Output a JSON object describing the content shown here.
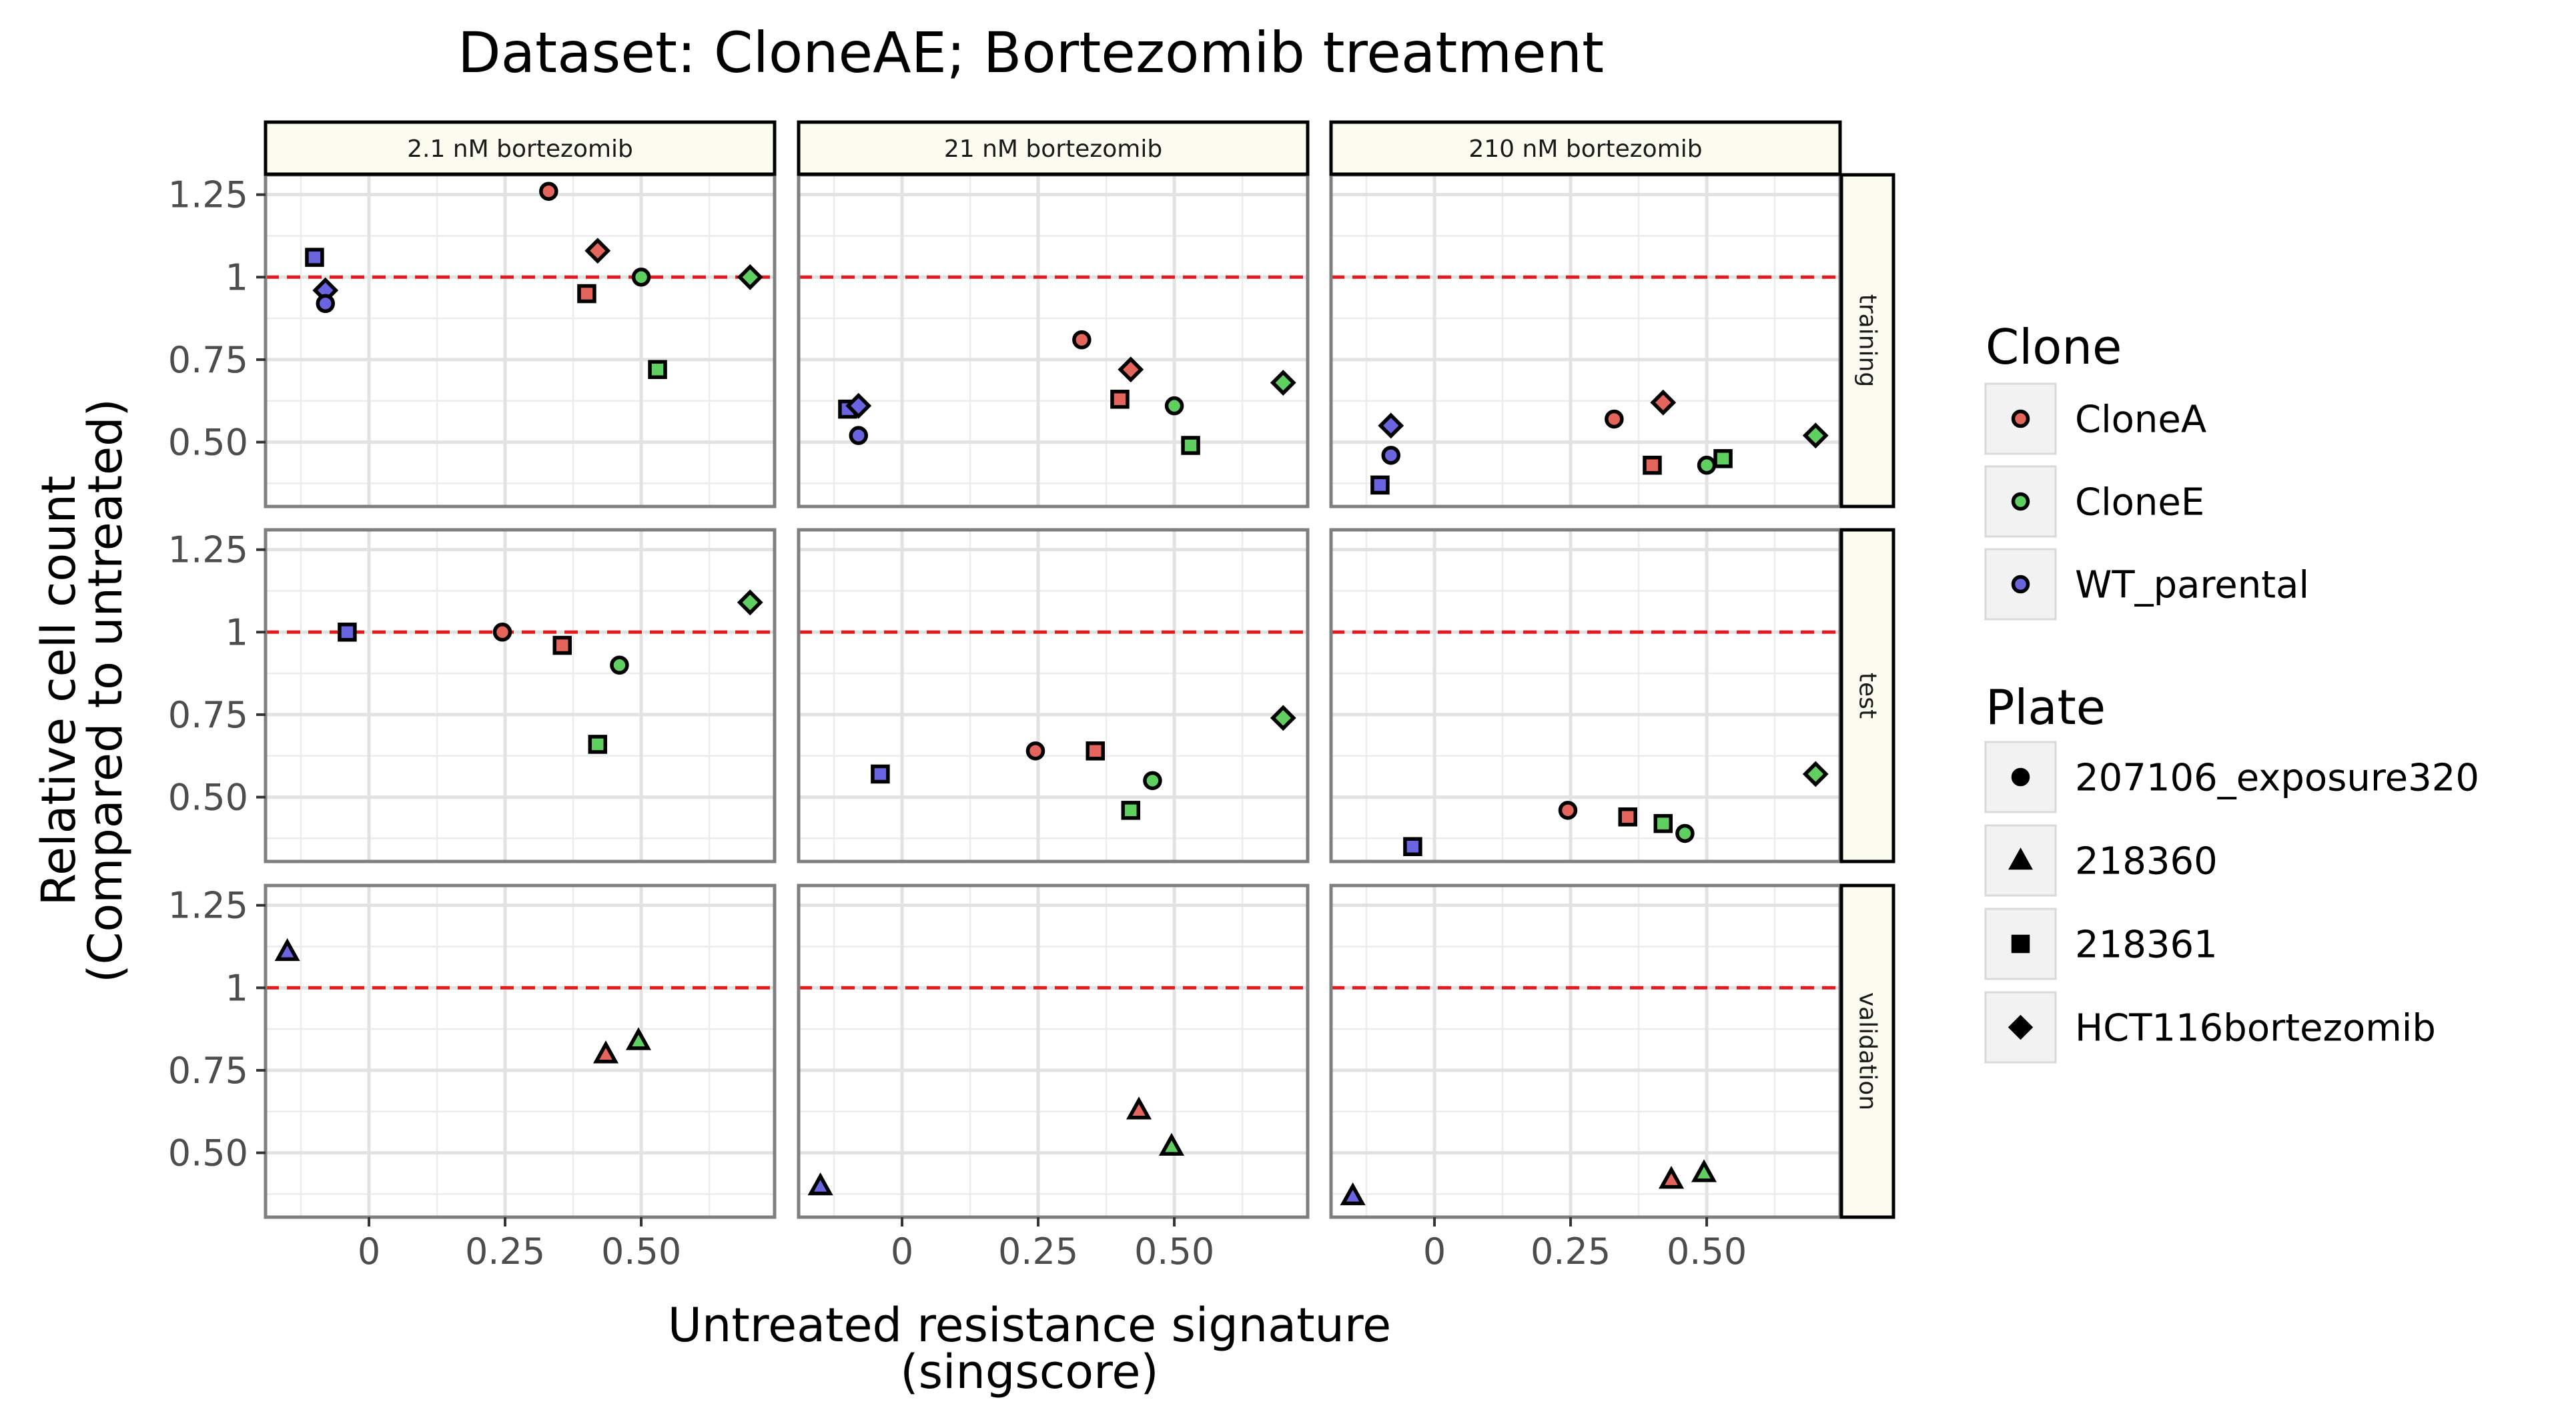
{
  "chart_data": {
    "type": "scatter",
    "title": "Dataset: CloneAE; Bortezomib treatment",
    "xlabel": [
      "Untreated resistance signature",
      "(singscore)"
    ],
    "ylabel": [
      "Relative cell count",
      "(Compared to untreated)"
    ],
    "xlim": [
      -0.19,
      0.745
    ],
    "ylim": [
      0.305,
      1.31
    ],
    "xticks": [
      {
        "v": 0,
        "label": "0"
      },
      {
        "v": 0.25,
        "label": "0.25"
      },
      {
        "v": 0.5,
        "label": "0.50"
      }
    ],
    "yticks": [
      {
        "v": 0.5,
        "label": "0.50"
      },
      {
        "v": 0.75,
        "label": "0.75"
      },
      {
        "v": 1,
        "label": "1"
      },
      {
        "v": 1.25,
        "label": "1.25"
      }
    ],
    "reference_line": {
      "y": 1,
      "style": "dashed",
      "color": "#e41a1c"
    },
    "grid": true,
    "columns": [
      "2.1 nM bortezomib",
      "21 nM bortezomib",
      "210 nM bortezomib"
    ],
    "rows": [
      "training",
      "test",
      "validation"
    ],
    "legend": {
      "placement": "right",
      "clone": {
        "title": "Clone",
        "items": [
          {
            "key": "CloneA",
            "label": "CloneA",
            "color": "#e5645b"
          },
          {
            "key": "CloneE",
            "label": "CloneE",
            "color": "#5fcf5f"
          },
          {
            "key": "WT_parental",
            "label": "WT_parental",
            "color": "#6a64e0"
          }
        ]
      },
      "plate": {
        "title": "Plate",
        "items": [
          {
            "key": "207106_exposure320",
            "label": "207106_exposure320",
            "shape": "circle"
          },
          {
            "key": "218360",
            "label": "218360",
            "shape": "triangle"
          },
          {
            "key": "218361",
            "label": "218361",
            "shape": "square"
          },
          {
            "key": "HCT116bortezomib",
            "label": "HCT116bortezomib",
            "shape": "diamond"
          }
        ]
      }
    },
    "points": [
      {
        "row": 0,
        "col": 0,
        "x": -0.1,
        "y": 1.06,
        "clone": "WT_parental",
        "plate": "218361"
      },
      {
        "row": 0,
        "col": 0,
        "x": -0.08,
        "y": 0.96,
        "clone": "WT_parental",
        "plate": "HCT116bortezomib"
      },
      {
        "row": 0,
        "col": 0,
        "x": -0.08,
        "y": 0.92,
        "clone": "WT_parental",
        "plate": "207106_exposure320"
      },
      {
        "row": 0,
        "col": 0,
        "x": 0.33,
        "y": 1.26,
        "clone": "CloneA",
        "plate": "207106_exposure320"
      },
      {
        "row": 0,
        "col": 0,
        "x": 0.42,
        "y": 1.08,
        "clone": "CloneA",
        "plate": "HCT116bortezomib"
      },
      {
        "row": 0,
        "col": 0,
        "x": 0.4,
        "y": 0.95,
        "clone": "CloneA",
        "plate": "218361"
      },
      {
        "row": 0,
        "col": 0,
        "x": 0.5,
        "y": 1.0,
        "clone": "CloneE",
        "plate": "207106_exposure320"
      },
      {
        "row": 0,
        "col": 0,
        "x": 0.7,
        "y": 1.0,
        "clone": "CloneE",
        "plate": "HCT116bortezomib"
      },
      {
        "row": 0,
        "col": 0,
        "x": 0.53,
        "y": 0.72,
        "clone": "CloneE",
        "plate": "218361"
      },
      {
        "row": 0,
        "col": 1,
        "x": -0.1,
        "y": 0.6,
        "clone": "WT_parental",
        "plate": "218361"
      },
      {
        "row": 0,
        "col": 1,
        "x": -0.08,
        "y": 0.61,
        "clone": "WT_parental",
        "plate": "HCT116bortezomib"
      },
      {
        "row": 0,
        "col": 1,
        "x": -0.08,
        "y": 0.52,
        "clone": "WT_parental",
        "plate": "207106_exposure320"
      },
      {
        "row": 0,
        "col": 1,
        "x": 0.33,
        "y": 0.81,
        "clone": "CloneA",
        "plate": "207106_exposure320"
      },
      {
        "row": 0,
        "col": 1,
        "x": 0.42,
        "y": 0.72,
        "clone": "CloneA",
        "plate": "HCT116bortezomib"
      },
      {
        "row": 0,
        "col": 1,
        "x": 0.4,
        "y": 0.63,
        "clone": "CloneA",
        "plate": "218361"
      },
      {
        "row": 0,
        "col": 1,
        "x": 0.5,
        "y": 0.61,
        "clone": "CloneE",
        "plate": "207106_exposure320"
      },
      {
        "row": 0,
        "col": 1,
        "x": 0.7,
        "y": 0.68,
        "clone": "CloneE",
        "plate": "HCT116bortezomib"
      },
      {
        "row": 0,
        "col": 1,
        "x": 0.53,
        "y": 0.49,
        "clone": "CloneE",
        "plate": "218361"
      },
      {
        "row": 0,
        "col": 2,
        "x": -0.1,
        "y": 0.37,
        "clone": "WT_parental",
        "plate": "218361"
      },
      {
        "row": 0,
        "col": 2,
        "x": -0.08,
        "y": 0.55,
        "clone": "WT_parental",
        "plate": "HCT116bortezomib"
      },
      {
        "row": 0,
        "col": 2,
        "x": -0.08,
        "y": 0.46,
        "clone": "WT_parental",
        "plate": "207106_exposure320"
      },
      {
        "row": 0,
        "col": 2,
        "x": 0.33,
        "y": 0.57,
        "clone": "CloneA",
        "plate": "207106_exposure320"
      },
      {
        "row": 0,
        "col": 2,
        "x": 0.42,
        "y": 0.62,
        "clone": "CloneA",
        "plate": "HCT116bortezomib"
      },
      {
        "row": 0,
        "col": 2,
        "x": 0.4,
        "y": 0.43,
        "clone": "CloneA",
        "plate": "218361"
      },
      {
        "row": 0,
        "col": 2,
        "x": 0.5,
        "y": 0.43,
        "clone": "CloneE",
        "plate": "207106_exposure320"
      },
      {
        "row": 0,
        "col": 2,
        "x": 0.7,
        "y": 0.52,
        "clone": "CloneE",
        "plate": "HCT116bortezomib"
      },
      {
        "row": 0,
        "col": 2,
        "x": 0.53,
        "y": 0.45,
        "clone": "CloneE",
        "plate": "218361"
      },
      {
        "row": 1,
        "col": 0,
        "x": -0.04,
        "y": 1.0,
        "clone": "WT_parental",
        "plate": "218361"
      },
      {
        "row": 1,
        "col": 0,
        "x": 0.245,
        "y": 1.0,
        "clone": "CloneA",
        "plate": "207106_exposure320"
      },
      {
        "row": 1,
        "col": 0,
        "x": 0.355,
        "y": 0.96,
        "clone": "CloneA",
        "plate": "218361"
      },
      {
        "row": 1,
        "col": 0,
        "x": 0.46,
        "y": 0.9,
        "clone": "CloneE",
        "plate": "207106_exposure320"
      },
      {
        "row": 1,
        "col": 0,
        "x": 0.42,
        "y": 0.66,
        "clone": "CloneE",
        "plate": "218361"
      },
      {
        "row": 1,
        "col": 0,
        "x": 0.7,
        "y": 1.09,
        "clone": "CloneE",
        "plate": "HCT116bortezomib"
      },
      {
        "row": 1,
        "col": 1,
        "x": -0.04,
        "y": 0.57,
        "clone": "WT_parental",
        "plate": "218361"
      },
      {
        "row": 1,
        "col": 1,
        "x": 0.245,
        "y": 0.64,
        "clone": "CloneA",
        "plate": "207106_exposure320"
      },
      {
        "row": 1,
        "col": 1,
        "x": 0.355,
        "y": 0.64,
        "clone": "CloneA",
        "plate": "218361"
      },
      {
        "row": 1,
        "col": 1,
        "x": 0.46,
        "y": 0.55,
        "clone": "CloneE",
        "plate": "207106_exposure320"
      },
      {
        "row": 1,
        "col": 1,
        "x": 0.42,
        "y": 0.46,
        "clone": "CloneE",
        "plate": "218361"
      },
      {
        "row": 1,
        "col": 1,
        "x": 0.7,
        "y": 0.74,
        "clone": "CloneE",
        "plate": "HCT116bortezomib"
      },
      {
        "row": 1,
        "col": 2,
        "x": -0.04,
        "y": 0.35,
        "clone": "WT_parental",
        "plate": "218361"
      },
      {
        "row": 1,
        "col": 2,
        "x": 0.245,
        "y": 0.46,
        "clone": "CloneA",
        "plate": "207106_exposure320"
      },
      {
        "row": 1,
        "col": 2,
        "x": 0.355,
        "y": 0.44,
        "clone": "CloneA",
        "plate": "218361"
      },
      {
        "row": 1,
        "col": 2,
        "x": 0.46,
        "y": 0.39,
        "clone": "CloneE",
        "plate": "207106_exposure320"
      },
      {
        "row": 1,
        "col": 2,
        "x": 0.42,
        "y": 0.42,
        "clone": "CloneE",
        "plate": "218361"
      },
      {
        "row": 1,
        "col": 2,
        "x": 0.7,
        "y": 0.57,
        "clone": "CloneE",
        "plate": "HCT116bortezomib"
      },
      {
        "row": 2,
        "col": 0,
        "x": -0.15,
        "y": 1.11,
        "clone": "WT_parental",
        "plate": "218360"
      },
      {
        "row": 2,
        "col": 0,
        "x": 0.435,
        "y": 0.8,
        "clone": "CloneA",
        "plate": "218360"
      },
      {
        "row": 2,
        "col": 0,
        "x": 0.495,
        "y": 0.84,
        "clone": "CloneE",
        "plate": "218360"
      },
      {
        "row": 2,
        "col": 1,
        "x": -0.15,
        "y": 0.4,
        "clone": "WT_parental",
        "plate": "218360"
      },
      {
        "row": 2,
        "col": 1,
        "x": 0.435,
        "y": 0.63,
        "clone": "CloneA",
        "plate": "218360"
      },
      {
        "row": 2,
        "col": 1,
        "x": 0.495,
        "y": 0.52,
        "clone": "CloneE",
        "plate": "218360"
      },
      {
        "row": 2,
        "col": 2,
        "x": -0.15,
        "y": 0.37,
        "clone": "WT_parental",
        "plate": "218360"
      },
      {
        "row": 2,
        "col": 2,
        "x": 0.435,
        "y": 0.42,
        "clone": "CloneA",
        "plate": "218360"
      },
      {
        "row": 2,
        "col": 2,
        "x": 0.495,
        "y": 0.44,
        "clone": "CloneE",
        "plate": "218360"
      }
    ]
  }
}
